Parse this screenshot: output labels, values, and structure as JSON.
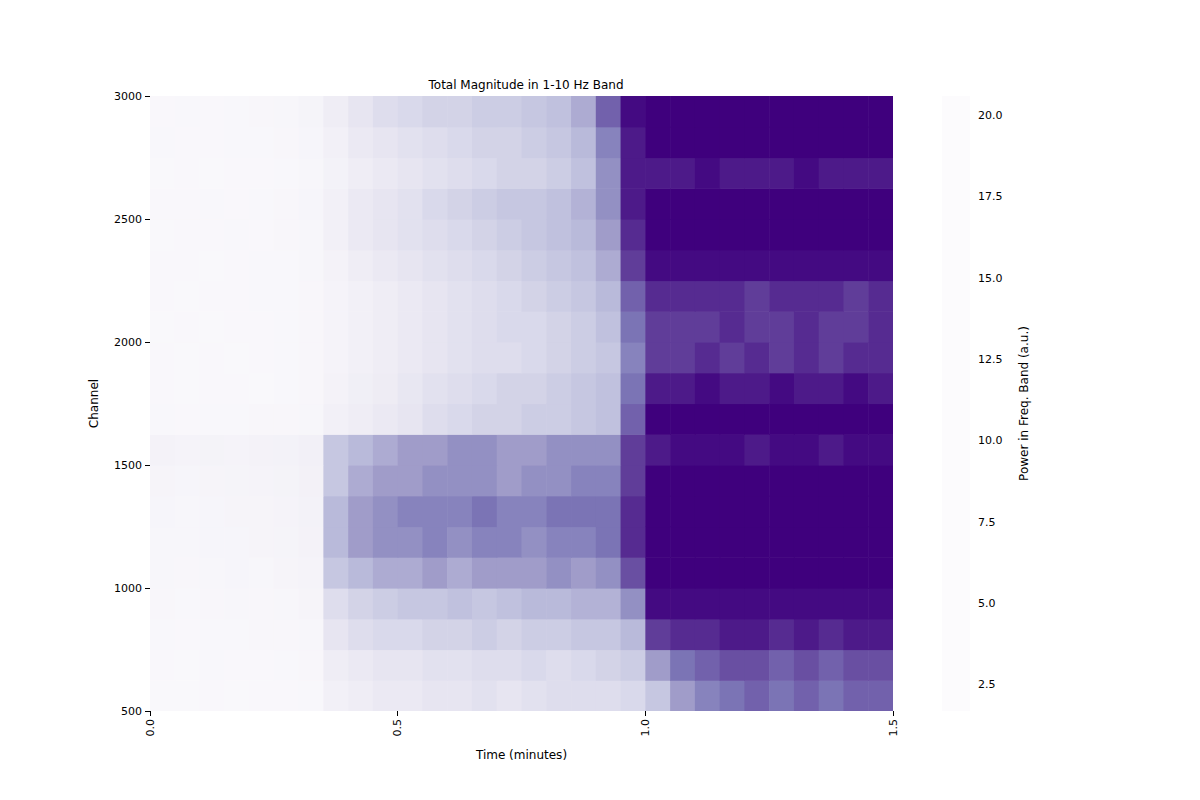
{
  "chart_data": {
    "type": "heatmap",
    "title": "Total Magnitude in 1-10 Hz Band",
    "x_label": "Time (minutes)",
    "y_label": "Channel",
    "xlim": [
      0,
      1.5
    ],
    "xticks": [
      {
        "value": 0,
        "label": "0.0"
      },
      0.5,
      {
        "value": 1,
        "label": "1.0"
      },
      1.5
    ],
    "ylim": [
      500,
      3000
    ],
    "yticks": [
      500,
      1000,
      1500,
      2000,
      2500,
      3000
    ],
    "grid": false,
    "x_bins": [
      0,
      0.05,
      0.1,
      0.15,
      0.2,
      0.25,
      0.3,
      0.35,
      0.4,
      0.45,
      0.5,
      0.55,
      0.6,
      0.65,
      0.7,
      0.75,
      0.8,
      0.85,
      0.9,
      0.95,
      1.0,
      1.05,
      1.1,
      1.15,
      1.2,
      1.25,
      1.3,
      1.35,
      1.4,
      1.45,
      1.5
    ],
    "y_bins": [
      500,
      625,
      750,
      875,
      1000,
      1125,
      1250,
      1375,
      1500,
      1625,
      1750,
      1875,
      2000,
      2125,
      2250,
      2375,
      2500,
      2625,
      2750,
      2875,
      3000
    ],
    "cells": [
      [
        2.2,
        2.2,
        2.3,
        2.2,
        2.3,
        2.3,
        2.4,
        3.5,
        4,
        4.5,
        4.5,
        5,
        5,
        5.5,
        5,
        5.5,
        6,
        6,
        6,
        6.5,
        8,
        11,
        13,
        14,
        15,
        14,
        15,
        14,
        15,
        15
      ],
      [
        2.3,
        2.2,
        2.4,
        2.3,
        2.3,
        2.4,
        2.5,
        4,
        4.5,
        5,
        5,
        5.5,
        5.5,
        6,
        6,
        6.5,
        6,
        6.5,
        7,
        7.5,
        11,
        14,
        15,
        16,
        16,
        15,
        16,
        15,
        16,
        16
      ],
      [
        2.4,
        2.3,
        2.4,
        2.4,
        2.5,
        2.5,
        2.6,
        5,
        6,
        6.5,
        6.5,
        7,
        7,
        7.5,
        7,
        7.5,
        7.5,
        8,
        8,
        9,
        17,
        18,
        18,
        19,
        19,
        18,
        19,
        18,
        19,
        19
      ],
      [
        2.5,
        2.4,
        2.5,
        2.6,
        2.5,
        2.6,
        2.8,
        6,
        7,
        7.5,
        8,
        8,
        8.5,
        8,
        8.5,
        9,
        9,
        9.5,
        9.5,
        12,
        20,
        20,
        20,
        20,
        20,
        20,
        20,
        20,
        20,
        20
      ],
      [
        2.6,
        2.5,
        2.6,
        2.7,
        2.6,
        2.8,
        3,
        8,
        9,
        10,
        10,
        11,
        10,
        11,
        11,
        11,
        12,
        11,
        12,
        16,
        20.6,
        20.6,
        20.6,
        20.6,
        20.6,
        20.6,
        20.6,
        20.6,
        20.6,
        20.6
      ],
      [
        2.6,
        2.6,
        2.7,
        2.7,
        2.8,
        2.9,
        3.2,
        9,
        11,
        12,
        12,
        13,
        12,
        13,
        13,
        12,
        13,
        13,
        14,
        18,
        20.6,
        20.6,
        20.6,
        20.6,
        20.6,
        20.6,
        20.6,
        20.6,
        20.6,
        20.6
      ],
      [
        2.7,
        2.6,
        2.7,
        2.8,
        2.8,
        3,
        3.3,
        9,
        11,
        12,
        13,
        13,
        13,
        14,
        13,
        13,
        14,
        14,
        14,
        18,
        20.6,
        20.6,
        20.6,
        20.6,
        20.6,
        20.6,
        20.6,
        20.6,
        20.6,
        20.6
      ],
      [
        2.8,
        2.7,
        2.8,
        2.9,
        3,
        3.1,
        3.4,
        8,
        10,
        11,
        11,
        12,
        12,
        12,
        11,
        12,
        12,
        13,
        13,
        17,
        20.6,
        20.6,
        20.6,
        20.6,
        20.6,
        20.6,
        20.6,
        20.6,
        20.6,
        20.6
      ],
      [
        3.2,
        3,
        3.1,
        3,
        3.2,
        3.3,
        3.6,
        8,
        9,
        10,
        11,
        11,
        12,
        12,
        11,
        11,
        12,
        12,
        12,
        17,
        19,
        20,
        20,
        20,
        19,
        20,
        20,
        19,
        20,
        20
      ],
      [
        2.4,
        2.3,
        2.4,
        2.4,
        2.5,
        2.5,
        2.6,
        3.5,
        4,
        4.5,
        5,
        6,
        6.5,
        7,
        7,
        7.5,
        7.5,
        8,
        8.5,
        15,
        20.6,
        20.6,
        20.6,
        20.6,
        20.6,
        20.6,
        20.6,
        20.6,
        20.6,
        20.6
      ],
      [
        2.3,
        2.2,
        2.3,
        2.3,
        2.2,
        2.4,
        2.5,
        3.2,
        3.8,
        4.2,
        4.8,
        5.5,
        6,
        6.5,
        7,
        7,
        7.5,
        8,
        8.5,
        14,
        19,
        19,
        20,
        19,
        19,
        20,
        19,
        19,
        20,
        19
      ],
      [
        2.3,
        2.2,
        2.3,
        2.2,
        2.3,
        2.4,
        2.5,
        3,
        3.5,
        4,
        4.5,
        5,
        5.5,
        6,
        6,
        6.5,
        7,
        7.5,
        8,
        13,
        17,
        17,
        18,
        17,
        18,
        17,
        18,
        17,
        18,
        18
      ],
      [
        2.2,
        2.3,
        2.2,
        2.3,
        2.3,
        2.4,
        2.5,
        3,
        3.5,
        4,
        4.5,
        5,
        5.5,
        6,
        6.5,
        6.5,
        7,
        7.5,
        8.5,
        14,
        17,
        17,
        17,
        18,
        17,
        17,
        18,
        17,
        17,
        18
      ],
      [
        2.3,
        2.2,
        2.3,
        2.3,
        2.4,
        2.4,
        2.5,
        3,
        3.5,
        4,
        4.5,
        5,
        5.5,
        6,
        6.5,
        7,
        7.5,
        8,
        9,
        15,
        18,
        18,
        18,
        18,
        17,
        18,
        18,
        18,
        17,
        18
      ],
      [
        2.3,
        2.3,
        2.2,
        2.3,
        2.4,
        2.4,
        2.6,
        3.2,
        4,
        4.5,
        5,
        5.5,
        6,
        6.5,
        7,
        7.5,
        8,
        8.5,
        10,
        17,
        20,
        20,
        20,
        20,
        20,
        20,
        20,
        20,
        20,
        20
      ],
      [
        2.2,
        2.3,
        2.3,
        2.4,
        2.3,
        2.5,
        2.6,
        3.5,
        4.5,
        5,
        5.5,
        6,
        6.5,
        7,
        7.5,
        8,
        8.5,
        9,
        11,
        18,
        20.6,
        20.6,
        20.6,
        20.6,
        20.6,
        20.6,
        20.6,
        20.6,
        20.6,
        20.6
      ],
      [
        2.3,
        2.3,
        2.4,
        2.3,
        2.4,
        2.5,
        2.7,
        3.5,
        4.5,
        5,
        5.5,
        6.5,
        7,
        7.5,
        8,
        8,
        8.5,
        9.5,
        12,
        19,
        20.6,
        20.6,
        20.6,
        20.6,
        20.6,
        20.6,
        20.6,
        20.6,
        20.6,
        20.6
      ],
      [
        2.2,
        2.3,
        2.2,
        2.3,
        2.3,
        2.4,
        2.6,
        3.3,
        4,
        4.5,
        5,
        5.5,
        6,
        6.5,
        7,
        7,
        7.5,
        8.5,
        12,
        19,
        19,
        19,
        20,
        19,
        19,
        19,
        20,
        19,
        19,
        19
      ],
      [
        2.4,
        2.3,
        2.3,
        2.4,
        2.4,
        2.5,
        2.7,
        3.5,
        4.5,
        5,
        5.5,
        6,
        6.5,
        7,
        7,
        7.5,
        8,
        9,
        13,
        19,
        20.6,
        20.6,
        20.6,
        20.6,
        20.6,
        20.6,
        20.6,
        20.6,
        20.6,
        20.6
      ],
      [
        2.3,
        2.4,
        2.3,
        2.4,
        2.5,
        2.6,
        2.9,
        4,
        5,
        6,
        6.5,
        7,
        7,
        7.5,
        7.5,
        8,
        8.5,
        10,
        15,
        20,
        20.6,
        20.6,
        20.6,
        20.6,
        20.6,
        20.6,
        20.6,
        20.6,
        20.6,
        20.6
      ]
    ],
    "colorbar": {
      "label": "Power in Freq. Band (a.u.)",
      "range": [
        1.7,
        20.6
      ],
      "ticks": [
        2.5,
        {
          "value": 5,
          "label": "5.0"
        },
        7.5,
        {
          "value": 10,
          "label": "10.0"
        },
        12.5,
        {
          "value": 15,
          "label": "15.0"
        },
        17.5,
        {
          "value": 20,
          "label": "20.0"
        }
      ]
    }
  }
}
